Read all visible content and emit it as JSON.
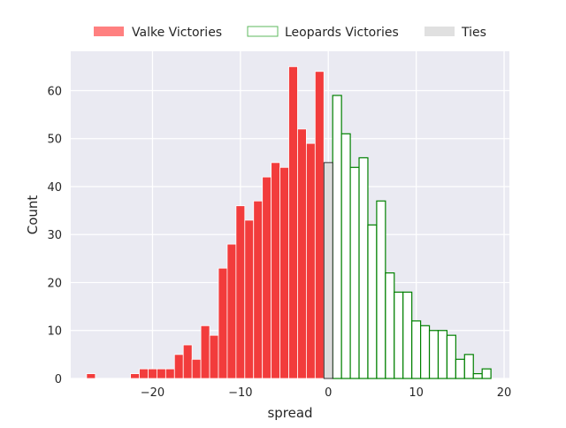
{
  "chart_data": {
    "type": "bar",
    "title": "",
    "xlabel": "spread",
    "ylabel": "Count",
    "xlim": [
      -29.3,
      20.6
    ],
    "ylim": [
      0,
      68.2
    ],
    "x_ticks": [
      -20,
      -10,
      0,
      10,
      20
    ],
    "y_ticks": [
      0,
      10,
      20,
      30,
      40,
      50,
      60
    ],
    "x_tick_labels": [
      "−20",
      "−10",
      "0",
      "10",
      "20"
    ],
    "y_tick_labels": [
      "0",
      "10",
      "20",
      "30",
      "40",
      "50",
      "60"
    ],
    "grid": true,
    "legend_position": "top-center",
    "legend": [
      {
        "label": "Valke Victories",
        "style": "filled",
        "color": "#ff8080"
      },
      {
        "label": "Leopards Victories",
        "style": "outline",
        "color": "#5cb85c"
      },
      {
        "label": "Ties",
        "style": "filled",
        "color": "#e0e0e0"
      }
    ],
    "series": [
      {
        "name": "Valke Victories",
        "color": "#f23c3c",
        "x": [
          -27,
          -22,
          -21,
          -20,
          -19,
          -18,
          -17,
          -16,
          -15,
          -14,
          -13,
          -12,
          -11,
          -10,
          -9,
          -8,
          -7,
          -6,
          -5,
          -4,
          -3,
          -2,
          -1
        ],
        "values": [
          1,
          1,
          2,
          2,
          2,
          2,
          5,
          7,
          4,
          11,
          9,
          23,
          28,
          36,
          33,
          37,
          42,
          45,
          44,
          65,
          52,
          49,
          64
        ]
      },
      {
        "name": "Leopards Victories",
        "color": "#008000",
        "x": [
          1,
          2,
          3,
          4,
          5,
          6,
          7,
          8,
          9,
          10,
          11,
          12,
          13,
          14,
          15,
          16,
          17,
          18
        ],
        "values": [
          59,
          51,
          44,
          46,
          32,
          37,
          22,
          18,
          18,
          12,
          11,
          10,
          10,
          9,
          4,
          5,
          1,
          2
        ]
      },
      {
        "name": "Ties",
        "color": "#dcdcdc",
        "x": [
          0
        ],
        "values": [
          45
        ]
      }
    ]
  }
}
